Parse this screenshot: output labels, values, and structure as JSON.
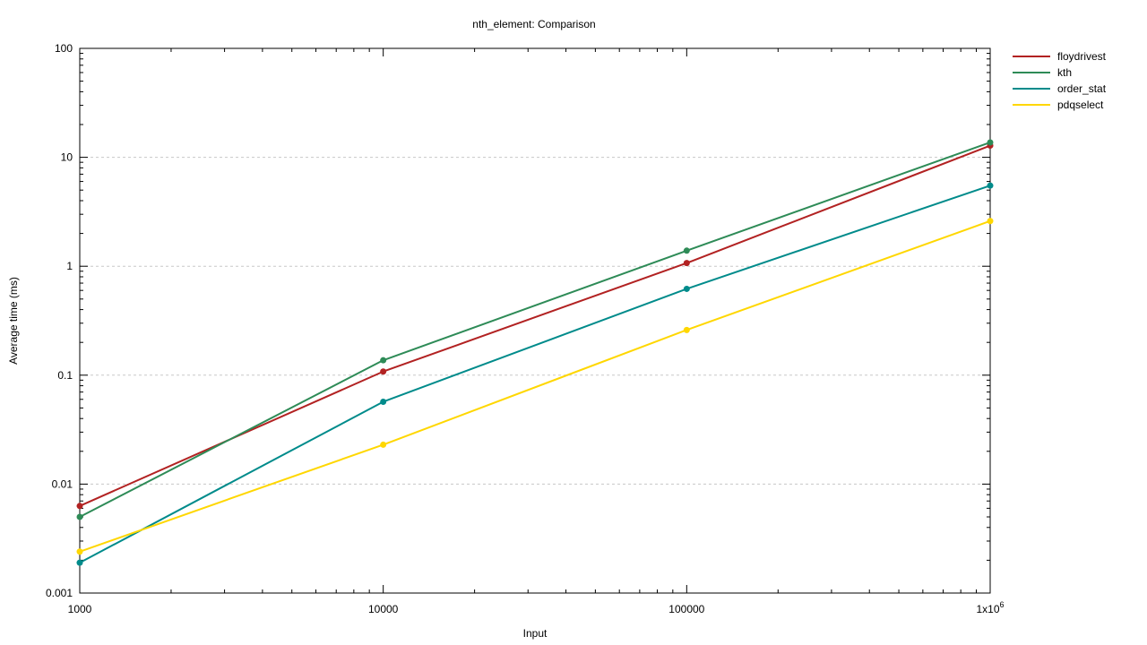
{
  "chart_data": {
    "type": "line",
    "title": "nth_element: Comparison",
    "xlabel": "Input",
    "ylabel": "Average time (ms)",
    "x_scale": "log",
    "y_scale": "log",
    "xlim": [
      1000,
      1000000
    ],
    "ylim": [
      0.001,
      100
    ],
    "grid": "horizontal dashed at major y ticks",
    "legend_position": "top-right outside plot",
    "x_ticks": [
      {
        "value": 1000,
        "label": "1000"
      },
      {
        "value": 10000,
        "label": "10000"
      },
      {
        "value": 100000,
        "label": "100000"
      },
      {
        "value": 1000000,
        "label": "1x10",
        "sup": "6"
      }
    ],
    "y_ticks": [
      {
        "value": 0.001,
        "label": "0.001"
      },
      {
        "value": 0.01,
        "label": "0.01"
      },
      {
        "value": 0.1,
        "label": "0.1"
      },
      {
        "value": 1,
        "label": "1"
      },
      {
        "value": 10,
        "label": "10"
      },
      {
        "value": 100,
        "label": "100"
      }
    ],
    "x": [
      1000,
      10000,
      100000,
      1000000
    ],
    "series": [
      {
        "name": "floydrivest",
        "color": "#b22222",
        "values": [
          0.0063,
          0.108,
          1.07,
          12.8
        ]
      },
      {
        "name": "kth",
        "color": "#2e8b57",
        "values": [
          0.005,
          0.137,
          1.39,
          13.7
        ]
      },
      {
        "name": "order_stat",
        "color": "#008b8b",
        "values": [
          0.0019,
          0.057,
          0.62,
          5.5
        ]
      },
      {
        "name": "pdqselect",
        "color": "#ffd700",
        "values": [
          0.0024,
          0.023,
          0.26,
          2.6
        ]
      }
    ]
  }
}
